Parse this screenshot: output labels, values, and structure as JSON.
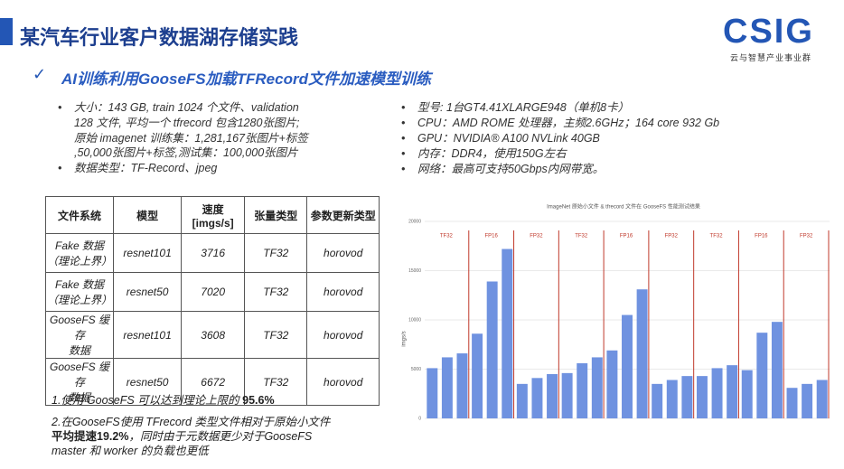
{
  "header": {
    "title": "某汽车行业客户数据湖存储实践",
    "logo": "CSIG",
    "logo_caption": "云与智慧产业事业群"
  },
  "subtitle": {
    "mark": "✓",
    "text": "AI训练利用GooseFS加载TFRecord文件加速模型训练"
  },
  "left_bullets": [
    [
      "大小：143 GB,   train 1024 个文件、validation",
      "128 文件, 平均一个 tfrecord 包含1280张图片;",
      "原始 imagenet 训练集：1,281,167张图片+标签",
      ",50,000张图片+标签,测试集：100,000张图片"
    ],
    [
      "数据类型：TF-Record、jpeg"
    ]
  ],
  "right_bullets": [
    "型号: 1台GT4.41XLARGE948（单机8卡）",
    "CPU：AMD ROME 处理器，主频2.6GHz；164 core 932 Gb",
    "GPU：NVIDIA® A100 NVLink 40GB",
    "内存：DDR4，使用150G左右",
    "网络：最高可支持50Gbps内网带宽。"
  ],
  "table": {
    "header": [
      "文件系统",
      "模型",
      "速度[imgs/s]",
      "张量类型",
      "参数更新类型"
    ],
    "rows": [
      [
        "Fake 数据\n（理论上界）",
        "resnet101",
        3716,
        "TF32",
        "horovod"
      ],
      [
        "Fake 数据\n（理论上界）",
        "resnet50",
        7020,
        "TF32",
        "horovod"
      ],
      [
        "GooseFS 缓存\n数据",
        "resnet101",
        3608,
        "TF32",
        "horovod"
      ],
      [
        "GooseFS 缓存\n数据",
        "resnet50",
        6672,
        "TF32",
        "horovod"
      ]
    ]
  },
  "notes": [
    [
      {
        "text": "1.使用 GooseFS 可以达到理论上限的 "
      },
      {
        "text": "95.6%",
        "bold": true
      }
    ],
    [
      {
        "text": "2.在GooseFS使用 TFrecord 类型文件相对于原始小文件 "
      },
      {
        "text": "平均提速19.2%",
        "bold": true
      },
      {
        "text": "，同时由于元数据更少对于GooseFS master 和 worker 的负载也更低"
      }
    ]
  ],
  "chart_data": {
    "type": "bar",
    "title": "ImageNet 原始小文件 & tfrecord 文件在 GooseFS 性能测试结果",
    "y_label": "imgs/s",
    "categories": [
      null,
      null,
      null,
      null,
      null,
      null,
      null,
      null,
      null,
      null,
      null,
      null,
      null,
      null,
      null,
      null,
      null,
      null,
      null,
      null,
      null,
      null,
      null,
      null,
      null,
      null,
      null
    ],
    "values": [
      5100,
      6200,
      6600,
      8600,
      13900,
      17200,
      3500,
      4100,
      4500,
      4600,
      5600,
      6200,
      6900,
      10500,
      13100,
      3500,
      3900,
      4300,
      4300,
      5100,
      5400,
      4900,
      8700,
      9800,
      3100,
      3500,
      3900
    ],
    "color": "#6f92e0",
    "ylim": [
      0,
      20000
    ],
    "yticks": [
      0,
      5000,
      10000,
      15000,
      20000
    ],
    "grid": true,
    "precision_labels": [
      "TF32",
      "FP16",
      "FP32",
      "TF32",
      "FP16",
      "FP32",
      "TF32",
      "FP16",
      "FP32"
    ],
    "precision_color": "#c0392b"
  }
}
